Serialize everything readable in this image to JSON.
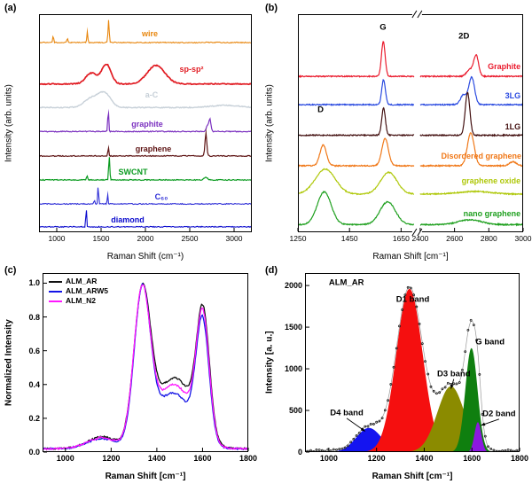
{
  "figure": {
    "background": "#ffffff",
    "tags": [
      "(a)",
      "(b)",
      "(c)",
      "(d)"
    ]
  },
  "chart_data": [
    {
      "type": "line",
      "tag": "(a)",
      "xlabel": "Raman Shift (cm⁻¹)",
      "ylabel": "Intensity (arb. units)",
      "xlim": [
        800,
        3200
      ],
      "ylim": [
        0,
        10
      ],
      "xticks": [
        1000,
        1500,
        2000,
        2500,
        3000
      ],
      "noise": 0.045,
      "series": [
        {
          "name": "wire",
          "label": "wire",
          "color": "#E8860D",
          "offset": 8.7,
          "lw": 1.1,
          "peaks": [
            [
              960,
              0.32,
              8
            ],
            [
              1120,
              0.22,
              8
            ],
            [
              1345,
              0.5,
              8
            ],
            [
              1585,
              1.05,
              9
            ]
          ],
          "label_x": 2050,
          "label_y": 9.1
        },
        {
          "name": "sp-sp2",
          "label": "sp-sp²",
          "color": "#E11B22",
          "offset": 6.8,
          "lw": 1.7,
          "peaks": [
            [
              1390,
              0.5,
              90
            ],
            [
              1560,
              0.9,
              75
            ],
            [
              2120,
              0.85,
              140
            ]
          ],
          "label_x": 2520,
          "label_y": 7.5
        },
        {
          "name": "a-C",
          "label": "a-C",
          "color": "#C7D0D8",
          "offset": 5.72,
          "lw": 1.4,
          "peaks": [
            [
              1400,
              0.45,
              120
            ],
            [
              1545,
              0.6,
              95
            ],
            [
              2900,
              0.1,
              220
            ]
          ],
          "label_x": 2070,
          "label_y": 6.3
        },
        {
          "name": "graphite",
          "label": "graphite",
          "color": "#7A2FBF",
          "offset": 4.62,
          "lw": 1.2,
          "peaks": [
            [
              1581,
              1.0,
              8
            ],
            [
              2700,
              0.25,
              22
            ],
            [
              2728,
              0.55,
              16
            ]
          ],
          "label_x": 2020,
          "label_y": 4.95
        },
        {
          "name": "graphene",
          "label": "graphene",
          "color": "#5E1414",
          "offset": 3.5,
          "lw": 1.2,
          "peaks": [
            [
              1582,
              0.4,
              8
            ],
            [
              2682,
              1.05,
              14
            ]
          ],
          "label_x": 2090,
          "label_y": 3.82
        },
        {
          "name": "SWCNT",
          "label": "SWCNT",
          "color": "#0B9B20",
          "offset": 2.4,
          "lw": 1.2,
          "peaks": [
            [
              1342,
              0.18,
              9
            ],
            [
              1592,
              1.1,
              9
            ],
            [
              2680,
              0.12,
              30
            ]
          ],
          "label_x": 1860,
          "label_y": 2.75
        },
        {
          "name": "C60",
          "label": "C₆₀",
          "color": "#2B2BD6",
          "offset": 1.3,
          "lw": 1.1,
          "peaks": [
            [
              1424,
              0.2,
              6
            ],
            [
              1468,
              1.0,
              6
            ],
            [
              1573,
              0.48,
              6
            ]
          ],
          "label_x": 2180,
          "label_y": 1.62
        },
        {
          "name": "diamond",
          "label": "diamond",
          "color": "#0A0ACD",
          "offset": 0.25,
          "lw": 1.1,
          "peaks": [
            [
              1332,
              1.05,
              6
            ]
          ],
          "label_x": 1800,
          "label_y": 0.55
        }
      ]
    },
    {
      "type": "line",
      "tag": "(b)",
      "xlabel": "Raman Shift [cm⁻¹]",
      "ylabel": "Intensity (arb. units)",
      "xlim": [
        1250,
        3000
      ],
      "ylim": [
        0,
        10
      ],
      "segments": [
        {
          "xmin": 1250,
          "xmax": 1700,
          "w": 0.53
        },
        {
          "xmin": 2400,
          "xmax": 3000,
          "w": 0.47
        }
      ],
      "xticks": [
        1250,
        1450,
        1650,
        2400,
        2600,
        2800,
        3000
      ],
      "noise": 0.05,
      "annotations": [
        {
          "text": "D",
          "x": 1338,
          "y": 5.6
        },
        {
          "text": "G",
          "x": 1580,
          "y": 9.4
        },
        {
          "text": "2D",
          "x": 2655,
          "y": 9.0
        }
      ],
      "series": [
        {
          "name": "Graphite",
          "label": "Graphite",
          "color": "#EA1C2E",
          "offset": 7.15,
          "lw": 1.2,
          "peaks": [
            [
              1581,
              1.6,
              10
            ],
            [
              2688,
              0.3,
              26
            ],
            [
              2726,
              0.95,
              20
            ]
          ],
          "label_x": 2985,
          "label_y": 7.62,
          "label_align": "right"
        },
        {
          "name": "3LG",
          "label": "3LG",
          "color": "#2B4BE0",
          "offset": 5.85,
          "lw": 1.2,
          "peaks": [
            [
              1582,
              1.15,
              10
            ],
            [
              2652,
              0.45,
              24
            ],
            [
              2700,
              1.25,
              24
            ]
          ],
          "label_x": 2985,
          "label_y": 6.25,
          "label_align": "right"
        },
        {
          "name": "1LG",
          "label": "1LG",
          "color": "#431010",
          "offset": 4.45,
          "lw": 1.2,
          "peaks": [
            [
              1582,
              1.25,
              10
            ],
            [
              2676,
              1.95,
              19
            ]
          ],
          "label_x": 2985,
          "label_y": 4.85,
          "label_align": "right"
        },
        {
          "name": "Disordered graphene",
          "label": "Disordered graphene",
          "color": "#F07818",
          "offset": 3.05,
          "lw": 1.2,
          "peaks": [
            [
              1348,
              0.95,
              18
            ],
            [
              1588,
              1.25,
              18
            ],
            [
              2695,
              1.5,
              28
            ],
            [
              2940,
              0.18,
              28
            ]
          ],
          "label_x": 2990,
          "label_y": 3.5,
          "label_align": "right"
        },
        {
          "name": "graphene oxide",
          "label": "graphene  oxide",
          "color": "#AFC80A",
          "offset": 1.75,
          "lw": 1.2,
          "peaks": [
            [
              1356,
              1.15,
              55
            ],
            [
              1602,
              1.0,
              45
            ],
            [
              2720,
              0.12,
              130
            ]
          ],
          "label_x": 2985,
          "label_y": 2.35,
          "label_align": "right"
        },
        {
          "name": "nano graphene",
          "label": "nano graphene",
          "color": "#1FA01F",
          "offset": 0.35,
          "lw": 1.2,
          "peaks": [
            [
              1352,
              1.5,
              38
            ],
            [
              1598,
              1.05,
              42
            ],
            [
              2690,
              0.22,
              95
            ]
          ],
          "label_x": 2985,
          "label_y": 0.85,
          "label_align": "right"
        }
      ]
    },
    {
      "type": "line",
      "tag": "(c)",
      "xlabel": "Raman Shift [cm⁻¹]",
      "ylabel": "Normalized Intensity",
      "xlim": [
        900,
        1800
      ],
      "ylim": [
        0,
        1.06
      ],
      "xticks": [
        1000,
        1200,
        1400,
        1600,
        1800
      ],
      "yticks": [
        "0.0",
        "0.2",
        "0.4",
        "0.6",
        "0.8",
        "1.0"
      ],
      "noise": 0.01,
      "legend": true,
      "series": [
        {
          "name": "ALM_AR",
          "color": "#111111",
          "offset": 0.02,
          "lw": 1.3,
          "peaks": [
            [
              1336,
              0.88,
              52
            ],
            [
              1602,
              0.72,
              40
            ],
            [
              1478,
              0.42,
              115
            ],
            [
              1160,
              0.07,
              90
            ]
          ]
        },
        {
          "name": "ALM_ARW5",
          "color": "#1414E6",
          "offset": 0.02,
          "lw": 1.3,
          "peaks": [
            [
              1336,
              0.9,
              50
            ],
            [
              1600,
              0.7,
              40
            ],
            [
              1472,
              0.33,
              110
            ],
            [
              1160,
              0.06,
              90
            ]
          ]
        },
        {
          "name": "ALM_N2",
          "color": "#FF17FF",
          "offset": 0.02,
          "lw": 1.3,
          "peaks": [
            [
              1335,
              0.89,
              51
            ],
            [
              1601,
              0.72,
              40
            ],
            [
              1475,
              0.38,
              112
            ],
            [
              1160,
              0.065,
              90
            ]
          ]
        }
      ]
    },
    {
      "type": "area",
      "tag": "(d)",
      "xlabel": "Raman Shift [cm⁻¹]",
      "ylabel": "Intensity [a. u.]",
      "xlim": [
        900,
        1800
      ],
      "ylim": [
        0,
        2150
      ],
      "xticks": [
        1000,
        1200,
        1400,
        1600,
        1800
      ],
      "yticks": [
        "0",
        "500",
        "1000",
        "1500",
        "2000"
      ],
      "annotations": [
        {
          "text": "ALM_AR",
          "x": 1000,
          "y": 2030,
          "align": "left"
        },
        {
          "text": "D4 band",
          "x": 1075,
          "y": 470,
          "tx": 1152,
          "ty": 250
        },
        {
          "text": "D1 band",
          "x": 1352,
          "y": 1830
        },
        {
          "text": "D3 band",
          "x": 1524,
          "y": 940,
          "tx": 1512,
          "ty": 760
        },
        {
          "text": "G band",
          "x": 1676,
          "y": 1320
        },
        {
          "text": "D2 band",
          "x": 1714,
          "y": 460,
          "tx": 1638,
          "ty": 320
        }
      ],
      "series": [
        {
          "name": "D4 band",
          "fill": true,
          "color": "#1414F0",
          "offset": 0,
          "peaks": [
            [
              1168,
              290,
              75
            ]
          ]
        },
        {
          "name": "D1 band",
          "fill": true,
          "color": "#F50F0F",
          "offset": 0,
          "peaks": [
            [
              1338,
              1960,
              78
            ]
          ]
        },
        {
          "name": "D3 band",
          "fill": true,
          "color": "#8B8B00",
          "offset": 0,
          "peaks": [
            [
              1512,
              790,
              80
            ]
          ]
        },
        {
          "name": "G band",
          "fill": true,
          "color": "#0F7F0F",
          "offset": 0,
          "peaks": [
            [
              1598,
              1250,
              36
            ]
          ]
        },
        {
          "name": "D2 band",
          "fill": true,
          "color": "#8C18E0",
          "offset": 0,
          "peaks": [
            [
              1625,
              360,
              20
            ]
          ]
        },
        {
          "name": "ALM_AR",
          "style": "dots",
          "color": "#1a1a1a",
          "offset": 18,
          "peaks": [
            [
              1168,
              290,
              75
            ],
            [
              1338,
              1960,
              78
            ],
            [
              1512,
              790,
              80
            ],
            [
              1598,
              1250,
              36
            ],
            [
              1625,
              360,
              20
            ]
          ]
        }
      ]
    }
  ]
}
